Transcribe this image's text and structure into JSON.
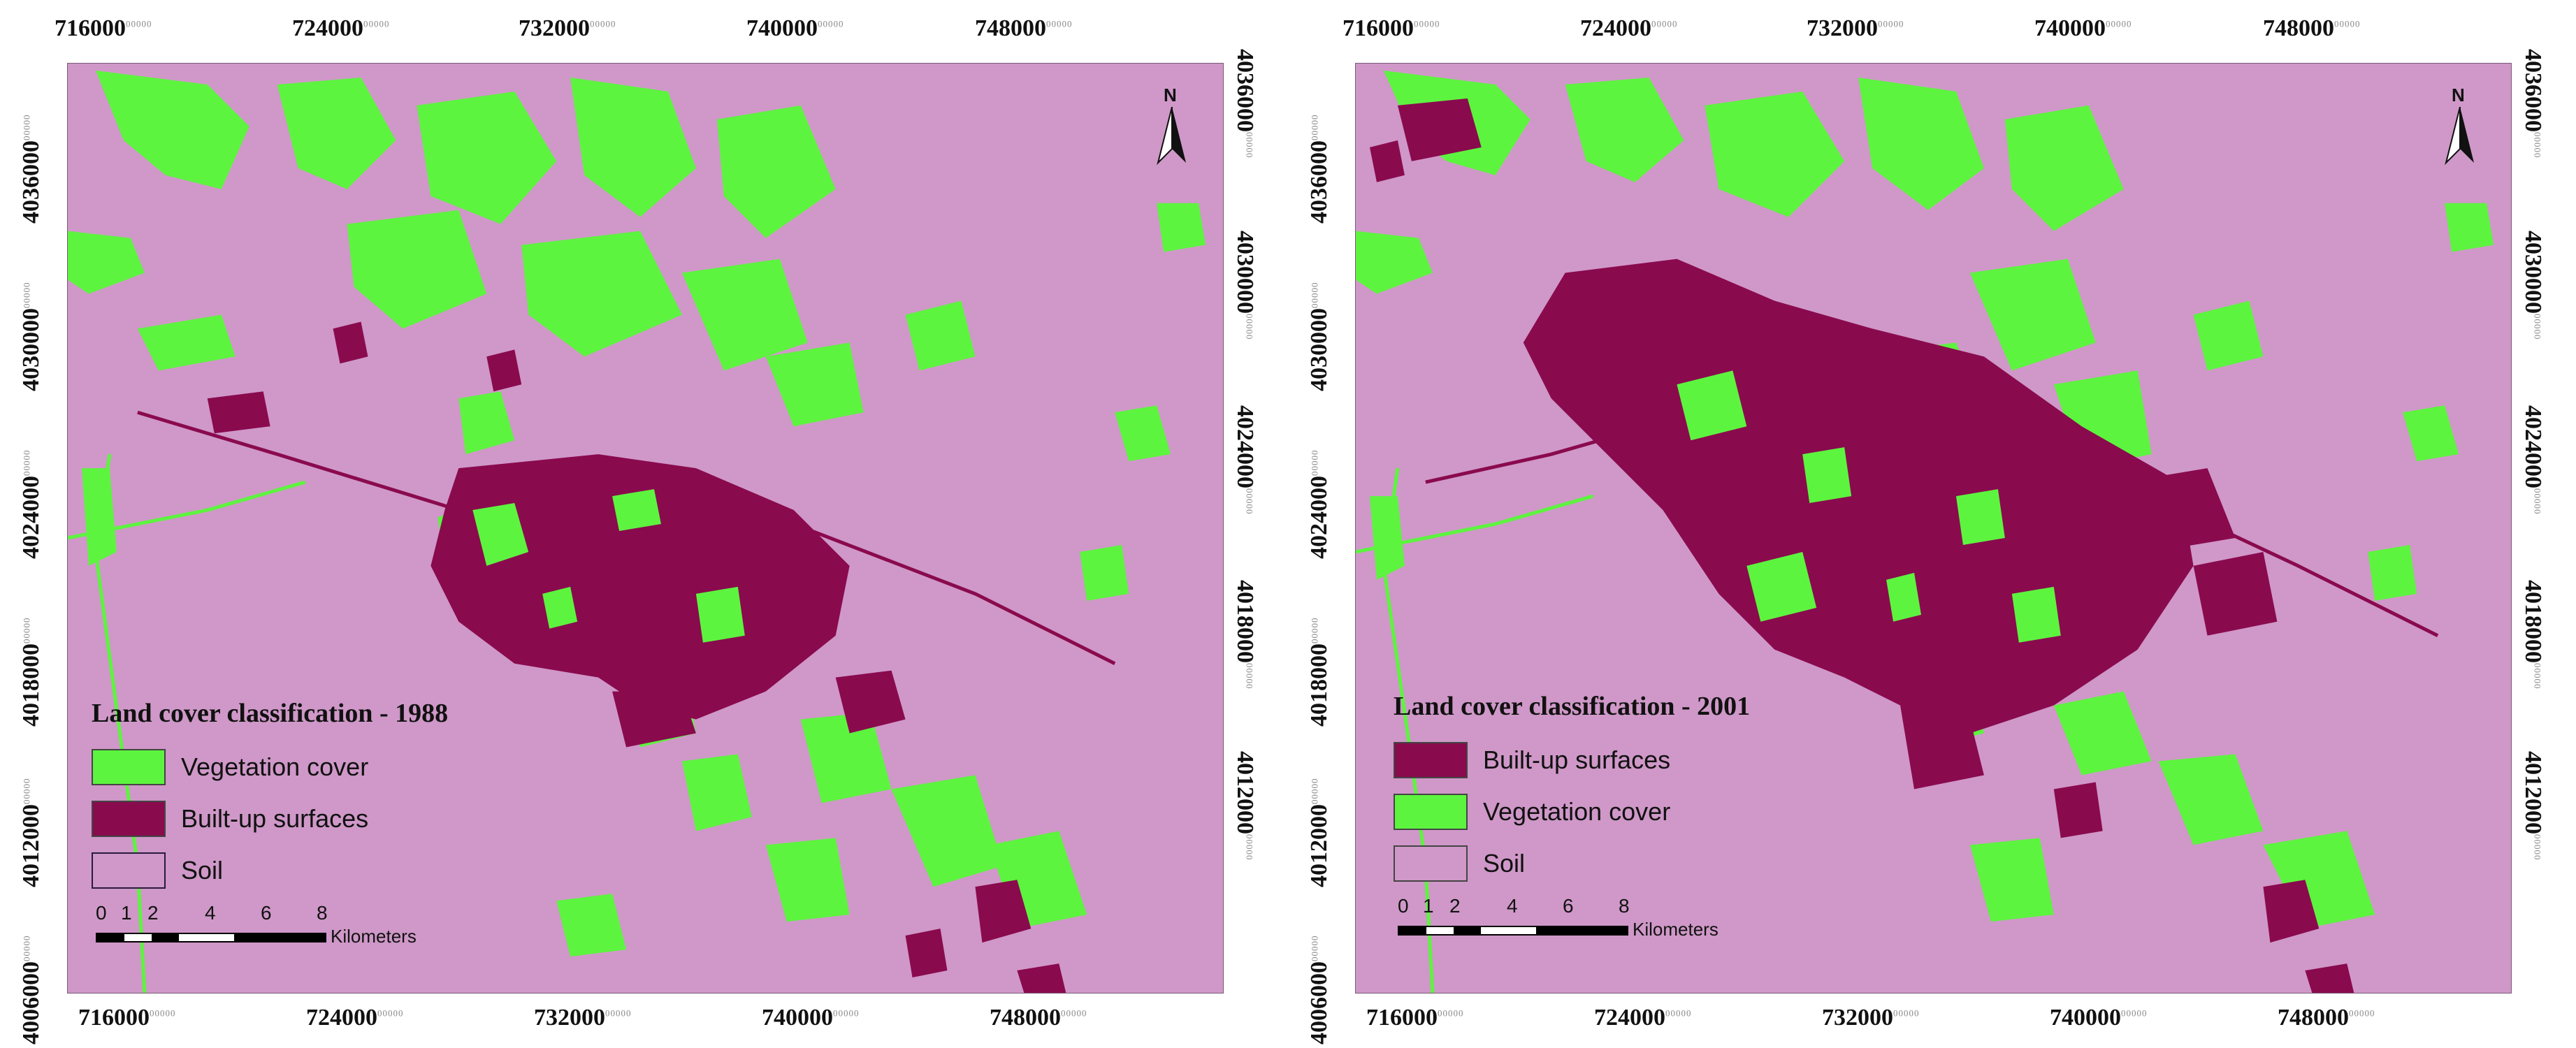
{
  "colors": {
    "soil": "#cf98c8",
    "built_up": "#8a0a4e",
    "vegetation": "#5df43f",
    "frame_border": "#7a5a78"
  },
  "tick_suffix": "00000",
  "panels": [
    {
      "id": "panel-1988",
      "x_ticks": [
        "716000",
        "724000",
        "732000",
        "740000",
        "748000"
      ],
      "y_ticks": [
        "4036000",
        "4030000",
        "4024000",
        "4018000",
        "4012000",
        "4006000"
      ],
      "legend": {
        "title": "Land cover classification - 1988",
        "items": [
          {
            "label": "Vegetation cover",
            "class": "vegetation"
          },
          {
            "label": "Built-up surfaces",
            "class": "built_up"
          },
          {
            "label": "Soil",
            "class": "soil"
          }
        ]
      },
      "scale": {
        "ticks": [
          "0",
          "1",
          "2",
          "4",
          "6",
          "8"
        ],
        "unit": "Kilometers"
      },
      "north_label": "N"
    },
    {
      "id": "panel-2001",
      "x_ticks": [
        "716000",
        "724000",
        "732000",
        "740000",
        "748000"
      ],
      "y_ticks": [
        "4036000",
        "4030000",
        "4024000",
        "4018000",
        "4012000",
        "4006000"
      ],
      "legend": {
        "title": "Land cover classification - 2001",
        "items": [
          {
            "label": "Built-up surfaces",
            "class": "built_up"
          },
          {
            "label": "Vegetation cover",
            "class": "vegetation"
          },
          {
            "label": "Soil",
            "class": "soil"
          }
        ]
      },
      "scale": {
        "ticks": [
          "0",
          "1",
          "2",
          "4",
          "6",
          "8"
        ],
        "unit": "Kilometers"
      },
      "north_label": "N"
    }
  ]
}
